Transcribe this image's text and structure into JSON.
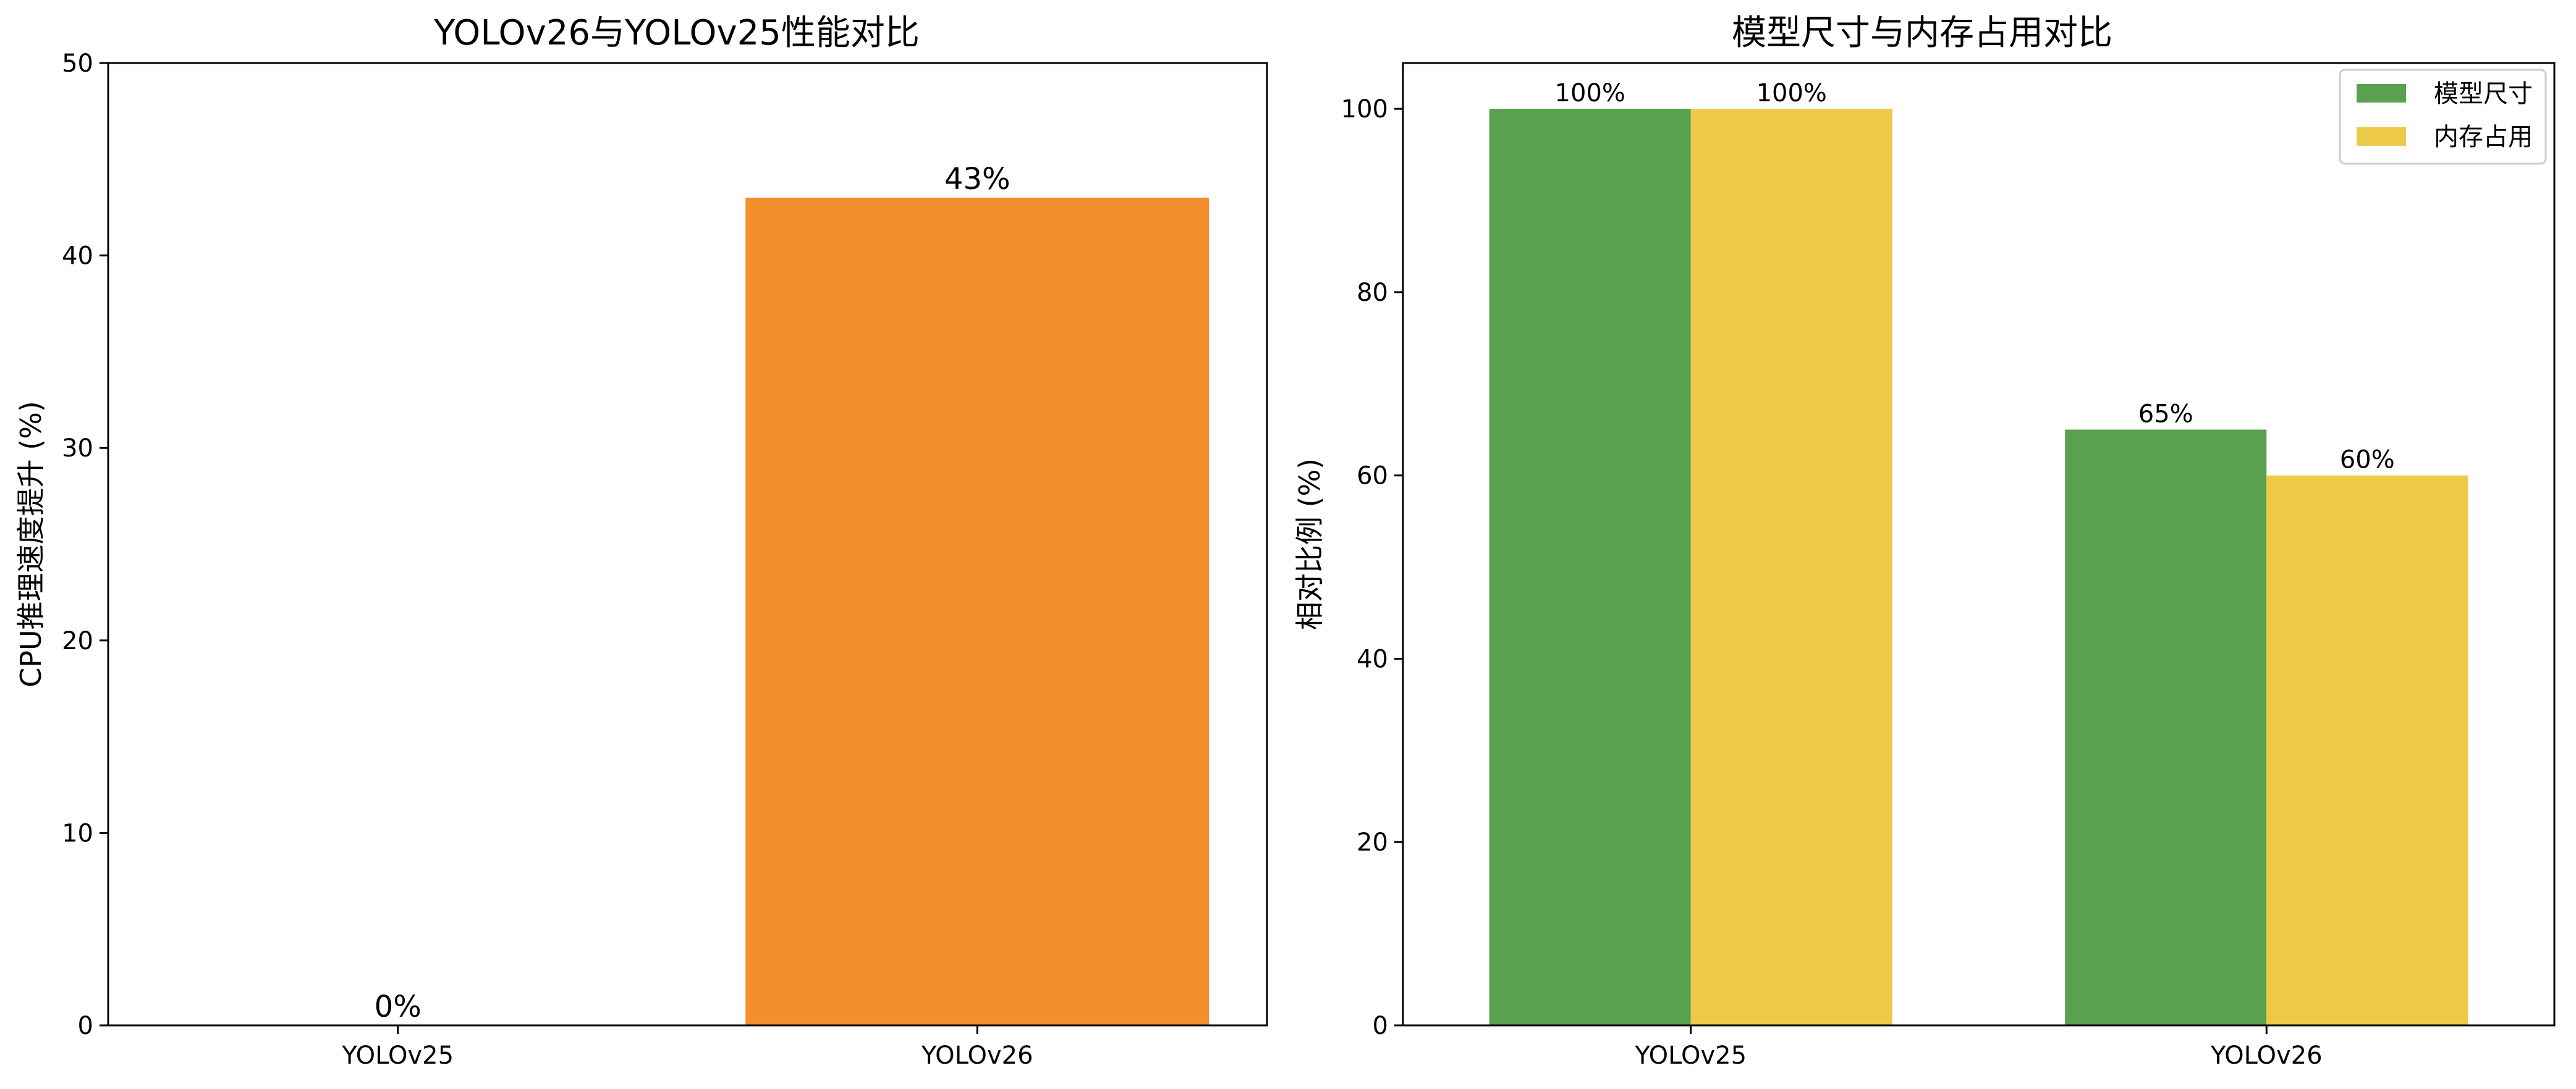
{
  "chart_data": [
    {
      "type": "bar",
      "title": "YOLOv26与YOLOv25性能对比",
      "xlabel": "",
      "ylabel": "CPU推理速度提升 (%)",
      "categories": [
        "YOLOv25",
        "YOLOv26"
      ],
      "values": [
        0,
        43
      ],
      "data_labels": [
        "0%",
        "43%"
      ],
      "colors": [
        "#1f77b4",
        "#f28e2b"
      ],
      "ylim": [
        0,
        50
      ],
      "yticks": [
        0,
        10,
        20,
        30,
        40,
        50
      ],
      "grid": false
    },
    {
      "type": "bar",
      "title": "模型尺寸与内存占用对比",
      "xlabel": "",
      "ylabel": "相对比例 (%)",
      "categories": [
        "YOLOv25",
        "YOLOv26"
      ],
      "series": [
        {
          "name": "模型尺寸",
          "values": [
            100,
            65
          ],
          "data_labels": [
            "100%",
            "65%"
          ],
          "color": "#59a14f"
        },
        {
          "name": "内存占用",
          "values": [
            100,
            60
          ],
          "data_labels": [
            "100%",
            "60%"
          ],
          "color": "#edc948"
        }
      ],
      "ylim": [
        0,
        105
      ],
      "yticks": [
        0,
        20,
        40,
        60,
        80,
        100
      ],
      "legend": "top-right",
      "grid": false
    }
  ]
}
